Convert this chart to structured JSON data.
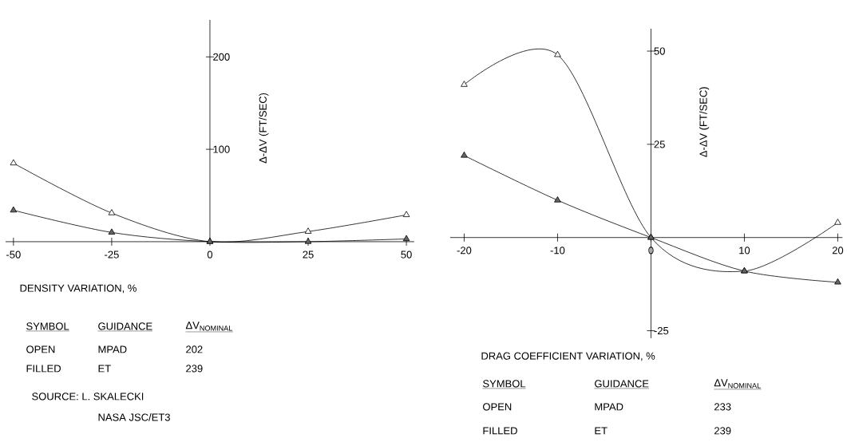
{
  "chart_data": [
    {
      "type": "line",
      "xlabel": "DENSITY VARIATION, %",
      "ylabel": "Δ-ΔV (FT/SEC)",
      "x": [
        -50,
        -25,
        0,
        25,
        50
      ],
      "series": [
        {
          "color": "#000000",
          "values": [
            85,
            31,
            0,
            11,
            29
          ]
        },
        {
          "color": "#000000",
          "values": [
            34,
            10,
            0,
            0,
            3
          ]
        }
      ],
      "xlim": [
        -52,
        52
      ],
      "ylim": [
        0,
        240
      ],
      "xticks": [
        -50,
        -25,
        0,
        25,
        50
      ],
      "yticks": [
        100,
        200
      ],
      "marker": "triangle",
      "line_style": "solid",
      "grid": false,
      "annotations": [
        "SYMBOL",
        "GUIDANCE",
        "ΔV$_{NOMINAL}$",
        "OPEN",
        "MPAD",
        "202",
        "FILLED",
        "ET",
        "239",
        "SOURCE: L. SKALECKI",
        "NASA JSC/ET3"
      ]
    },
    {
      "type": "line",
      "xlabel": "DRAG COEFFICIENT VARIATION, %",
      "ylabel": "Δ-ΔV (FT/SEC)",
      "x": [
        -20,
        -10,
        0,
        10,
        20
      ],
      "series": [
        {
          "color": "#000000",
          "values": [
            41,
            49,
            0,
            -9,
            4
          ]
        },
        {
          "color": "#000000",
          "values": [
            22,
            10,
            0,
            -9,
            -12
          ]
        }
      ],
      "xlim": [
        -21.5,
        20.5
      ],
      "ylim": [
        -27,
        56
      ],
      "xticks": [
        -20,
        -10,
        0,
        10,
        20
      ],
      "yticks": [
        -25,
        25,
        50
      ],
      "marker": "triangle",
      "line_style": "solid",
      "grid": false,
      "annotations": [
        "SYMBOL",
        "GUIDANCE",
        "ΔV$_{NOMINAL}$",
        "OPEN",
        "MPAD",
        "233",
        "FILLED",
        "ET",
        "239"
      ]
    }
  ]
}
